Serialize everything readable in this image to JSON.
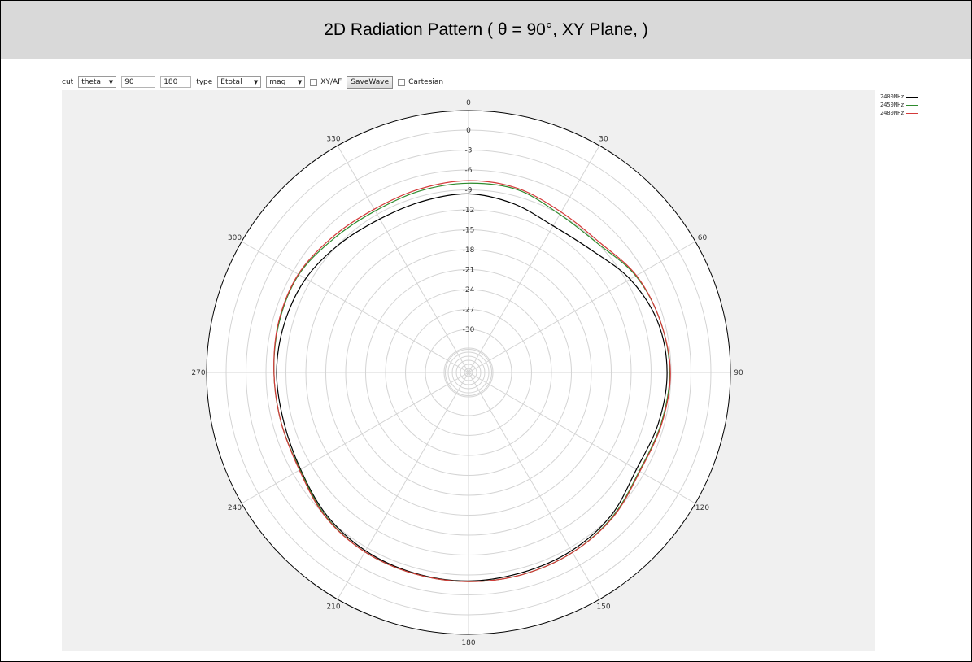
{
  "title": "2D Radiation Pattern ( θ = 90°, XY Plane, )",
  "toolbar": {
    "cut_label": "cut",
    "cut_value": "theta",
    "angle1": "90",
    "angle2": "180",
    "type_label": "type",
    "type_value": "Etotal",
    "mode_value": "mag",
    "xyaf_label": "XY/AF",
    "savewave_label": "SaveWave",
    "cartesian_label": "Cartesian"
  },
  "legend": [
    {
      "name": "2400MHz",
      "color": "#000000"
    },
    {
      "name": "2450MHz",
      "color": "#2e8b2e"
    },
    {
      "name": "2480MHz",
      "color": "#d43a3a"
    }
  ],
  "chart_data": {
    "type": "polar-line",
    "angle_labels": [
      "0",
      "30",
      "60",
      "90",
      "120",
      "150",
      "180",
      "210",
      "240",
      "270",
      "300",
      "330"
    ],
    "radial_labels": [
      "0",
      "-3",
      "-6",
      "-9",
      "-12",
      "-15",
      "-18",
      "-21",
      "-24",
      "-27",
      "-30"
    ],
    "radial_range_db": [
      -36,
      3
    ],
    "grid": true,
    "legend_position": "top-right",
    "angles_deg": [
      0,
      15,
      30,
      45,
      60,
      75,
      90,
      105,
      120,
      135,
      150,
      165,
      180,
      195,
      210,
      225,
      240,
      255,
      270,
      285,
      300,
      315,
      330,
      345
    ],
    "series": [
      {
        "name": "2400MHz",
        "color": "#000000",
        "values_db": [
          -9.6,
          -10.2,
          -11.0,
          -10.4,
          -8.4,
          -7.0,
          -6.6,
          -6.9,
          -7.3,
          -6.1,
          -5.5,
          -5.3,
          -5.1,
          -5.2,
          -5.5,
          -6.2,
          -7.3,
          -7.7,
          -7.6,
          -7.8,
          -8.2,
          -9.1,
          -9.8,
          -9.8
        ]
      },
      {
        "name": "2450MHz",
        "color": "#2e8b2e",
        "values_db": [
          -8.0,
          -8.0,
          -9.0,
          -9.0,
          -7.4,
          -6.6,
          -6.2,
          -6.5,
          -6.8,
          -5.8,
          -5.2,
          -5.0,
          -5.0,
          -5.1,
          -5.3,
          -6.0,
          -7.2,
          -7.3,
          -7.2,
          -7.0,
          -7.0,
          -7.9,
          -8.4,
          -8.2
        ]
      },
      {
        "name": "2480MHz",
        "color": "#d43a3a",
        "values_db": [
          -7.6,
          -7.8,
          -8.6,
          -8.7,
          -7.3,
          -6.6,
          -6.1,
          -6.4,
          -6.7,
          -5.7,
          -5.2,
          -5.0,
          -5.0,
          -5.1,
          -5.3,
          -5.9,
          -7.1,
          -7.3,
          -7.2,
          -6.9,
          -6.9,
          -7.6,
          -8.1,
          -7.9
        ]
      }
    ]
  }
}
